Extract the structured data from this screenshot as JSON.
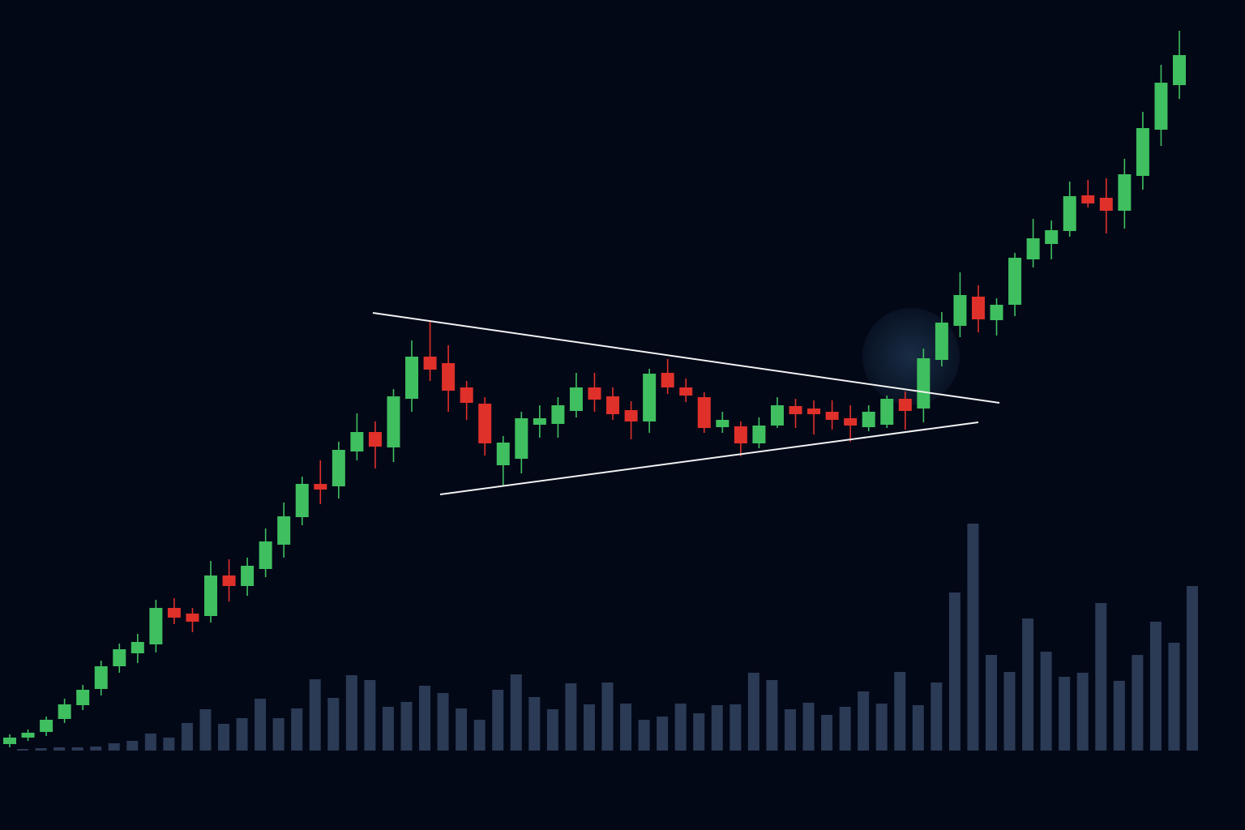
{
  "chart_data": {
    "type": "candlestick",
    "up_color": "#3fbf5f",
    "down_color": "#e0302a",
    "volume_color": "#2b3a55",
    "ylim": [
      0,
      100
    ],
    "volume_lim": [
      0,
      30
    ],
    "open": [
      8.2,
      9.0,
      9.7,
      11.3,
      13.0,
      15.0,
      17.8,
      19.4,
      20.5,
      25.0,
      24.3,
      24.0,
      29.0,
      27.7,
      29.8,
      32.8,
      36.2,
      40.3,
      40.0,
      44.3,
      46.7,
      44.8,
      50.8,
      56.0,
      55.2,
      52.2,
      50.2,
      42.6,
      43.4,
      47.6,
      47.7,
      49.3,
      52.2,
      51.1,
      49.4,
      48.0,
      54.0,
      52.2,
      51.0,
      47.3,
      47.4,
      45.3,
      47.5,
      49.9,
      49.6,
      49.2,
      48.4,
      47.3,
      47.6,
      50.8,
      49.6,
      55.6,
      59.8,
      63.4,
      60.5,
      62.4,
      68.0,
      69.9,
      71.5,
      75.9,
      75.6,
      74.0,
      78.3,
      84.0,
      89.5
    ],
    "high": [
      9.4,
      10.0,
      11.6,
      13.8,
      15.5,
      18.5,
      20.6,
      21.8,
      26.0,
      26.2,
      25.0,
      30.8,
      31.0,
      31.2,
      34.8,
      38.0,
      41.2,
      43.2,
      45.5,
      49.0,
      48.0,
      52.0,
      58.0,
      60.4,
      57.4,
      53.0,
      51.0,
      46.2,
      49.2,
      50.0,
      51.0,
      54.0,
      54.0,
      52.2,
      50.5,
      54.5,
      55.7,
      53.3,
      51.6,
      49.2,
      48.0,
      48.5,
      51.0,
      50.8,
      50.6,
      50.6,
      50.0,
      50.0,
      51.2,
      51.7,
      57.0,
      61.5,
      66.4,
      64.8,
      63.2,
      68.8,
      73.0,
      72.8,
      77.6,
      77.8,
      78.0,
      80.4,
      86.2,
      92.0,
      96.2
    ],
    "low": [
      7.8,
      8.6,
      9.2,
      10.8,
      12.4,
      14.2,
      17.0,
      18.2,
      19.5,
      23.0,
      22.0,
      23.2,
      25.8,
      26.5,
      28.8,
      31.2,
      35.2,
      37.8,
      38.5,
      43.2,
      42.2,
      43.0,
      49.2,
      53.0,
      49.2,
      48.2,
      43.8,
      40.0,
      41.6,
      46.0,
      46.0,
      48.5,
      49.2,
      48.2,
      45.8,
      46.6,
      51.4,
      50.4,
      46.6,
      46.6,
      43.7,
      44.7,
      47.2,
      47.2,
      46.4,
      47.0,
      45.5,
      46.8,
      47.2,
      47.0,
      47.9,
      54.8,
      58.4,
      59.0,
      58.6,
      61.0,
      67.0,
      68.0,
      70.8,
      74.4,
      71.2,
      71.8,
      76.6,
      82.0,
      87.8
    ],
    "close": [
      9.0,
      9.6,
      11.2,
      13.1,
      14.9,
      17.8,
      19.9,
      20.8,
      25.0,
      23.8,
      23.3,
      29.0,
      27.7,
      30.2,
      33.2,
      36.3,
      40.3,
      39.6,
      44.5,
      46.7,
      44.9,
      51.1,
      56.0,
      54.4,
      51.8,
      50.3,
      45.3,
      45.4,
      48.4,
      48.4,
      50.0,
      52.2,
      50.7,
      48.9,
      48.0,
      53.9,
      52.2,
      51.2,
      47.2,
      48.2,
      45.3,
      47.5,
      50.0,
      48.9,
      48.9,
      48.2,
      47.5,
      49.2,
      50.8,
      49.3,
      55.8,
      60.2,
      63.6,
      60.6,
      62.4,
      68.2,
      70.6,
      71.6,
      75.8,
      74.9,
      74.0,
      78.5,
      84.2,
      89.8,
      93.2
    ],
    "volume": [
      0.2,
      0.3,
      0.4,
      0.4,
      0.5,
      0.9,
      1.2,
      2.1,
      1.6,
      3.4,
      5.1,
      3.3,
      4.0,
      6.4,
      4.0,
      5.2,
      8.8,
      6.5,
      9.3,
      8.7,
      5.4,
      6.0,
      8.0,
      7.1,
      5.2,
      3.8,
      7.5,
      9.4,
      6.6,
      5.1,
      8.3,
      5.7,
      8.4,
      5.8,
      3.8,
      4.2,
      5.8,
      4.6,
      5.6,
      5.7,
      9.6,
      8.7,
      5.1,
      5.9,
      4.4,
      5.4,
      7.3,
      5.8,
      9.7,
      5.6,
      8.4,
      19.5,
      28.0,
      11.8,
      9.7,
      16.3,
      12.2,
      9.1,
      9.6,
      18.2,
      8.6,
      11.8,
      15.9,
      13.3,
      20.3
    ]
  }
}
